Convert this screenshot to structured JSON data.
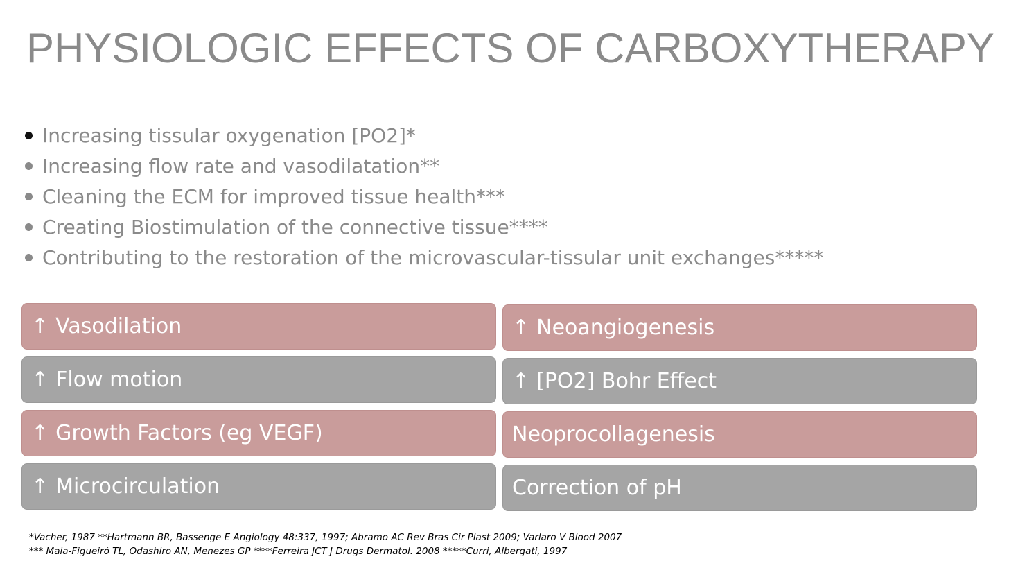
{
  "slide": {
    "title": "PHYSIOLOGIC EFFECTS OF CARBOXYTHERAPY"
  },
  "bullets": [
    "Increasing tissular oxygenation [PO2]*",
    "Increasing flow rate and vasodilatation**",
    "Cleaning the ECM for improved tissue health***",
    "Creating Biostimulation of the connective tissue****",
    "Contributing to the restoration of the microvascular-tissular unit exchanges*****"
  ],
  "effects": {
    "arrow_symbol": "↑",
    "left": [
      {
        "label": "Vasodilation",
        "arrow": true,
        "color": "#c99c9b"
      },
      {
        "label": "Flow motion",
        "arrow": true,
        "color": "#a5a5a5"
      },
      {
        "label": "Growth Factors (eg VEGF)",
        "arrow": true,
        "color": "#c99c9b"
      },
      {
        "label": "Microcirculation",
        "arrow": true,
        "color": "#a5a5a5"
      }
    ],
    "right": [
      {
        "label": "Neoangiogenesis",
        "arrow": true,
        "color": "#c99c9b"
      },
      {
        "label": "[PO2] Bohr Effect",
        "arrow": true,
        "color": "#a5a5a5"
      },
      {
        "label": "Neoprocollagenesis",
        "arrow": false,
        "color": "#c99c9b"
      },
      {
        "label": "Correction of pH",
        "arrow": false,
        "color": "#a5a5a5"
      }
    ]
  },
  "references": [
    "*Vacher, 1987 **Hartmann BR, Bassenge E Angiology 48:337, 1997; Abramo AC Rev Bras Cir Plast 2009; Varlaro V Blood 2007",
    "*** Maia-Figueiró TL, Odashiro AN, Menezes GP ****Ferreira JCT J Drugs Dermatol. 2008 *****Curri, Albergati, 1997"
  ],
  "colors": {
    "title_text": "#8a8a8a",
    "bullet_text": "#8a8a8a",
    "box_pink": "#c99c9b",
    "box_gray": "#a5a5a5",
    "box_text": "#ffffff"
  }
}
